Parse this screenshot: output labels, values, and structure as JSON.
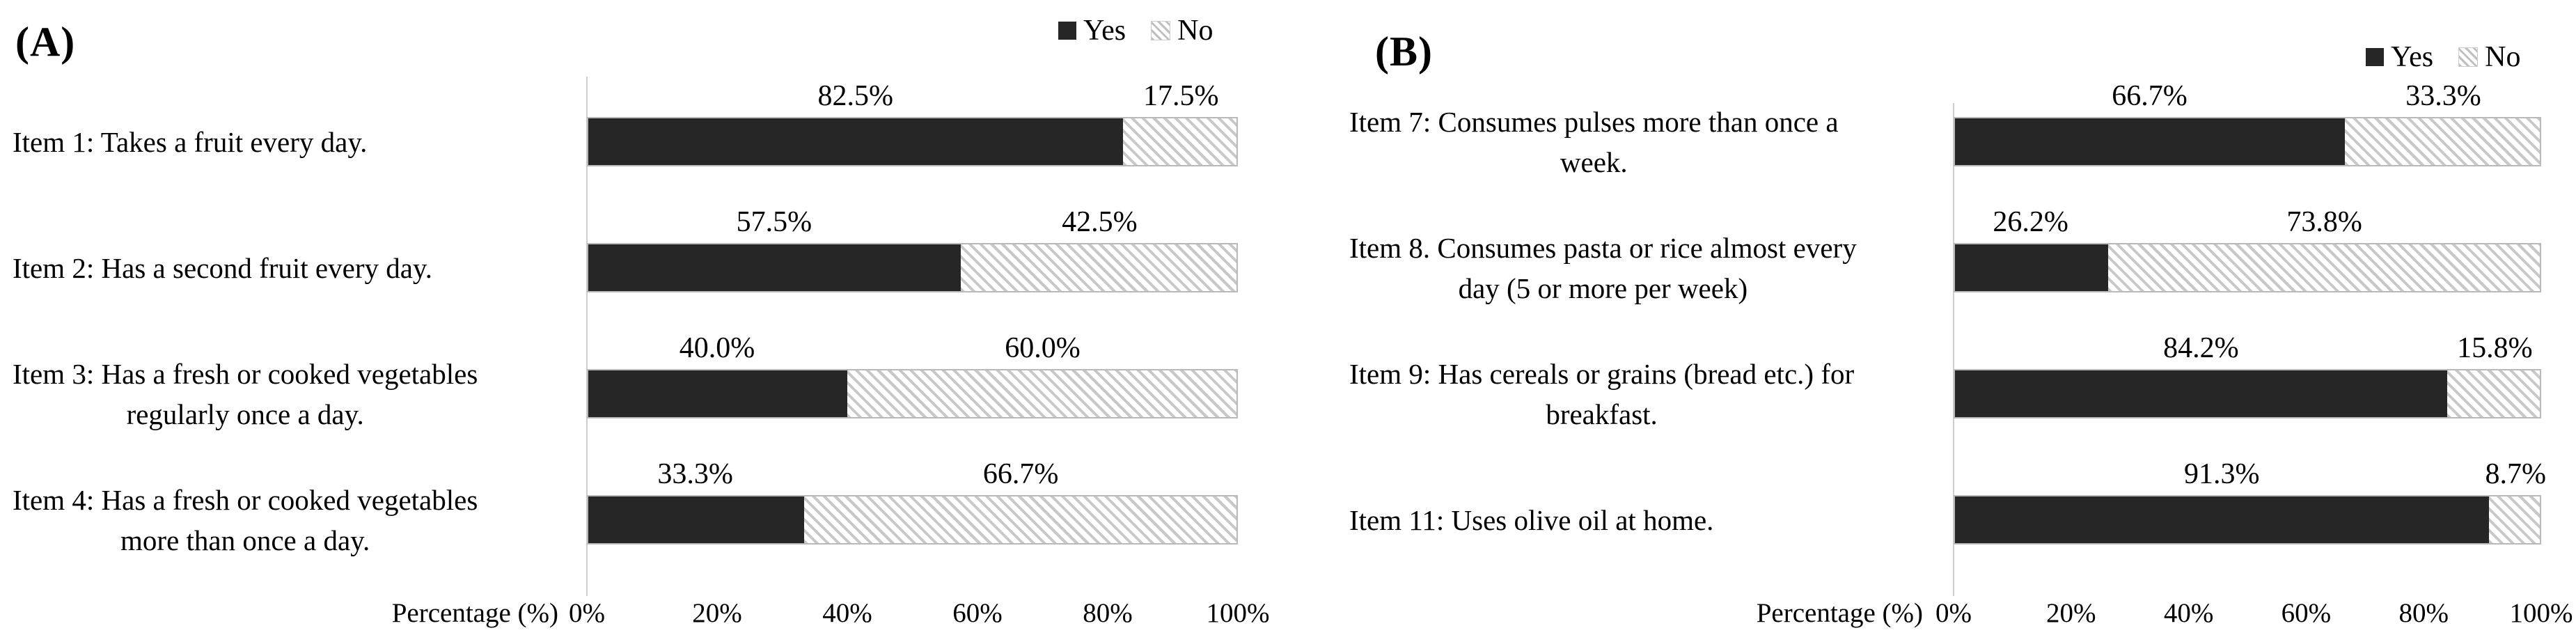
{
  "figure": {
    "axis_title": "Percentage (%)",
    "legend": {
      "yes": "Yes",
      "no": "No"
    },
    "colors": {
      "yes_fill": "#262626",
      "no_hatch_stripe": "#c8c8c8",
      "axis_line": "#cfcfcf",
      "text": "#000000"
    }
  },
  "chart_data": [
    {
      "type": "bar",
      "orientation": "horizontal_stacked",
      "panel_label": "(A)",
      "categories": [
        "Item 1: Takes a fruit every day.",
        "Item 2: Has a second fruit every day.",
        "Item 3: Has a fresh or cooked vegetables\nregularly once a day.",
        "Item 4: Has a fresh or cooked vegetables\nmore than once a day."
      ],
      "series": [
        {
          "name": "Yes",
          "values": [
            82.5,
            57.5,
            40.0,
            33.3
          ]
        },
        {
          "name": "No",
          "values": [
            17.5,
            42.5,
            60.0,
            66.7
          ]
        }
      ],
      "value_labels": {
        "Yes": [
          "82.5%",
          "57.5%",
          "40.0%",
          "33.3%"
        ],
        "No": [
          "17.5%",
          "42.5%",
          "60.0%",
          "66.7%"
        ]
      },
      "xlabel": "Percentage (%)",
      "x_ticks": [
        "0%",
        "20%",
        "40%",
        "60%",
        "80%",
        "100%"
      ],
      "xlim": [
        0,
        100
      ],
      "legend": [
        "Yes",
        "No"
      ],
      "legend_position": "top-right",
      "grid": false
    },
    {
      "type": "bar",
      "orientation": "horizontal_stacked",
      "panel_label": "(B)",
      "categories": [
        "Item 7: Consumes pulses more than once a\nweek.",
        "Item 8. Consumes pasta or rice almost every\nday (5 or more per week)",
        "Item 9: Has cereals or grains (bread etc.) for\nbreakfast.",
        "Item 11: Uses olive oil at home."
      ],
      "series": [
        {
          "name": "Yes",
          "values": [
            66.7,
            26.2,
            84.2,
            91.3
          ]
        },
        {
          "name": "No",
          "values": [
            33.3,
            73.8,
            15.8,
            8.7
          ]
        }
      ],
      "value_labels": {
        "Yes": [
          "66.7%",
          "26.2%",
          "84.2%",
          "91.3%"
        ],
        "No": [
          "33.3%",
          "73.8%",
          "15.8%",
          "8.7%"
        ]
      },
      "xlabel": "Percentage (%)",
      "x_ticks": [
        "0%",
        "20%",
        "40%",
        "60%",
        "80%",
        "100%"
      ],
      "xlim": [
        0,
        100
      ],
      "legend": [
        "Yes",
        "No"
      ],
      "legend_position": "top-right",
      "grid": false
    }
  ]
}
